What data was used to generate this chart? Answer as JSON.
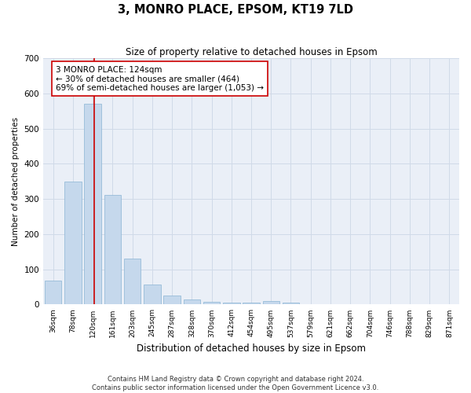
{
  "title": "3, MONRO PLACE, EPSOM, KT19 7LD",
  "subtitle": "Size of property relative to detached houses in Epsom",
  "xlabel": "Distribution of detached houses by size in Epsom",
  "ylabel": "Number of detached properties",
  "footer_line1": "Contains HM Land Registry data © Crown copyright and database right 2024.",
  "footer_line2": "Contains public sector information licensed under the Open Government Licence v3.0.",
  "categories": [
    "36sqm",
    "78sqm",
    "120sqm",
    "161sqm",
    "203sqm",
    "245sqm",
    "287sqm",
    "328sqm",
    "370sqm",
    "412sqm",
    "454sqm",
    "495sqm",
    "537sqm",
    "579sqm",
    "621sqm",
    "662sqm",
    "704sqm",
    "746sqm",
    "788sqm",
    "829sqm",
    "871sqm"
  ],
  "values": [
    68,
    350,
    570,
    312,
    130,
    57,
    25,
    14,
    7,
    6,
    6,
    10,
    5,
    0,
    0,
    0,
    0,
    0,
    0,
    0,
    0
  ],
  "bar_color": "#c5d8ec",
  "bar_edge_color": "#8ab4d4",
  "grid_color": "#d0dae8",
  "vline_color": "#cc0000",
  "vline_pos": 2.07,
  "annotation_box_color": "#ffffff",
  "annotation_box_edge": "#cc0000",
  "property_label": "3 MONRO PLACE: 124sqm",
  "annotation_line1": "← 30% of detached houses are smaller (464)",
  "annotation_line2": "69% of semi-detached houses are larger (1,053) →",
  "ylim": [
    0,
    700
  ],
  "yticks": [
    0,
    100,
    200,
    300,
    400,
    500,
    600,
    700
  ],
  "background_color": "#ffffff",
  "plot_bg_color": "#eaeff7"
}
